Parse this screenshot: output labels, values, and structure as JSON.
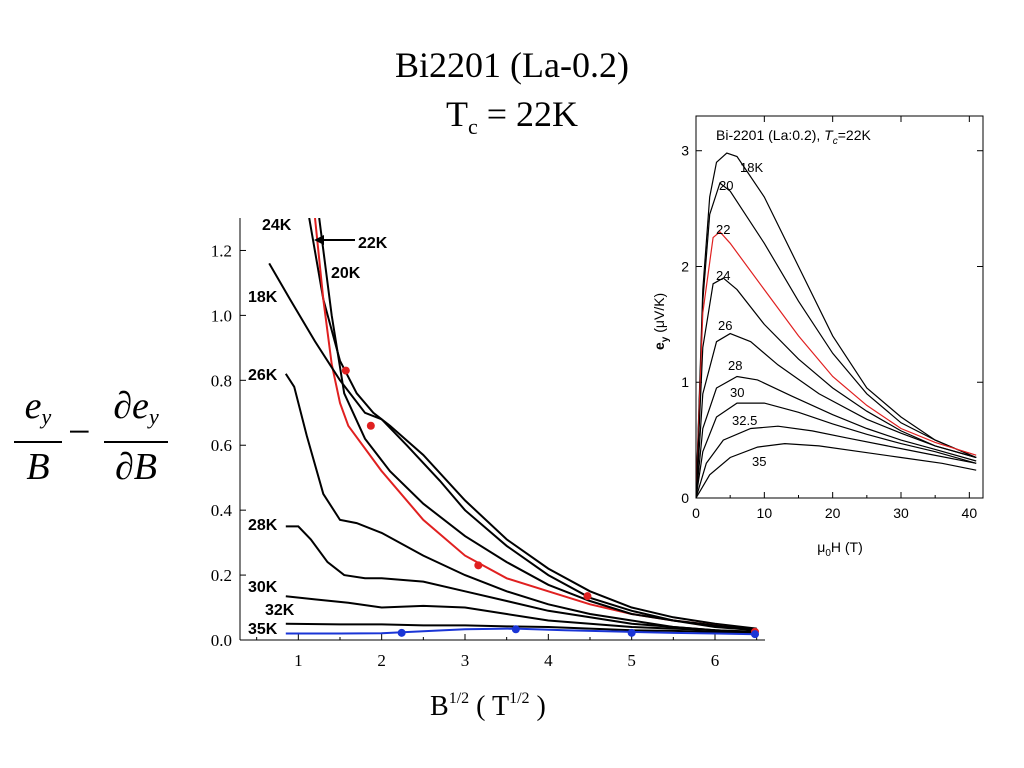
{
  "title_line1": "Bi2201 (La-0.2)",
  "title_line2_prefix": "T",
  "title_line2_sub": "c",
  "title_line2_suffix": " = 22K",
  "ylabel_formula": {
    "num1": "e",
    "num1_sub": "y",
    "den1": "B",
    "num2": "∂e",
    "num2_sub": "y",
    "den2": "∂B",
    "operator": "−"
  },
  "main_xlabel": {
    "base": "B",
    "sup": "1/2",
    "unit_pre": " ( T",
    "unit_sup": "1/2",
    "unit_post": " )"
  },
  "colors": {
    "red": "#e02020",
    "blue": "#1a35d6",
    "black": "#000000"
  },
  "chart_data": [
    {
      "type": "line",
      "xlim": [
        0.3,
        6.6
      ],
      "ylim": [
        0,
        1.3
      ],
      "x_ticks": [
        "1",
        "2",
        "3",
        "4",
        "5",
        "6"
      ],
      "y_ticks": [
        "0.0",
        "0.2",
        "0.4",
        "0.6",
        "0.8",
        "1.0",
        "1.2"
      ],
      "series": [
        {
          "name": "24K",
          "color": "#000000",
          "points": [
            [
              1.13,
              1.3
            ],
            [
              1.3,
              1.05
            ],
            [
              1.5,
              0.86
            ],
            [
              1.7,
              0.76
            ],
            [
              1.9,
              0.7
            ],
            [
              2.1,
              0.66
            ],
            [
              2.5,
              0.57
            ],
            [
              3.0,
              0.43
            ],
            [
              3.5,
              0.31
            ],
            [
              4.0,
              0.22
            ],
            [
              4.5,
              0.15
            ],
            [
              5.0,
              0.1
            ],
            [
              5.5,
              0.07
            ],
            [
              6.0,
              0.05
            ],
            [
              6.5,
              0.035
            ]
          ]
        },
        {
          "name": "22K",
          "color": "#e02020",
          "points": [
            [
              1.2,
              1.3
            ],
            [
              1.3,
              1.05
            ],
            [
              1.4,
              0.85
            ],
            [
              1.5,
              0.73
            ],
            [
              1.6,
              0.66
            ],
            [
              2.0,
              0.52
            ],
            [
              2.5,
              0.37
            ],
            [
              3.0,
              0.26
            ],
            [
              3.5,
              0.19
            ],
            [
              4.0,
              0.15
            ],
            [
              4.5,
              0.11
            ],
            [
              5.0,
              0.08
            ],
            [
              5.5,
              0.06
            ],
            [
              6.0,
              0.045
            ],
            [
              6.5,
              0.03
            ]
          ]
        },
        {
          "name": "20K",
          "color": "#000000",
          "points": [
            [
              1.25,
              1.3
            ],
            [
              1.4,
              1.0
            ],
            [
              1.55,
              0.76
            ],
            [
              1.8,
              0.62
            ],
            [
              2.1,
              0.52
            ],
            [
              2.5,
              0.42
            ],
            [
              3.0,
              0.32
            ],
            [
              3.5,
              0.24
            ],
            [
              4.0,
              0.17
            ],
            [
              4.5,
              0.12
            ],
            [
              5.0,
              0.08
            ],
            [
              5.5,
              0.06
            ],
            [
              6.0,
              0.045
            ],
            [
              6.5,
              0.032
            ]
          ]
        },
        {
          "name": "18K",
          "color": "#000000",
          "points": [
            [
              0.65,
              1.16
            ],
            [
              0.9,
              1.05
            ],
            [
              1.2,
              0.92
            ],
            [
              1.5,
              0.8
            ],
            [
              1.8,
              0.7
            ],
            [
              2.0,
              0.68
            ],
            [
              2.3,
              0.6
            ],
            [
              2.7,
              0.49
            ],
            [
              3.0,
              0.4
            ],
            [
              3.5,
              0.29
            ],
            [
              4.0,
              0.2
            ],
            [
              4.5,
              0.13
            ],
            [
              5.0,
              0.09
            ],
            [
              5.5,
              0.06
            ],
            [
              6.0,
              0.04
            ],
            [
              6.5,
              0.03
            ]
          ]
        },
        {
          "name": "26K",
          "color": "#000000",
          "points": [
            [
              0.85,
              0.82
            ],
            [
              0.95,
              0.78
            ],
            [
              1.1,
              0.63
            ],
            [
              1.3,
              0.45
            ],
            [
              1.5,
              0.37
            ],
            [
              1.7,
              0.36
            ],
            [
              2.0,
              0.33
            ],
            [
              2.5,
              0.26
            ],
            [
              3.0,
              0.2
            ],
            [
              3.5,
              0.15
            ],
            [
              4.0,
              0.11
            ],
            [
              4.5,
              0.08
            ],
            [
              5.0,
              0.06
            ],
            [
              5.5,
              0.04
            ],
            [
              6.0,
              0.03
            ],
            [
              6.5,
              0.025
            ]
          ]
        },
        {
          "name": "28K",
          "color": "#000000",
          "points": [
            [
              0.85,
              0.35
            ],
            [
              1.0,
              0.35
            ],
            [
              1.15,
              0.31
            ],
            [
              1.35,
              0.24
            ],
            [
              1.55,
              0.2
            ],
            [
              1.8,
              0.19
            ],
            [
              2.0,
              0.19
            ],
            [
              2.5,
              0.18
            ],
            [
              3.0,
              0.15
            ],
            [
              3.5,
              0.12
            ],
            [
              4.0,
              0.09
            ],
            [
              4.5,
              0.07
            ],
            [
              5.0,
              0.05
            ],
            [
              5.5,
              0.04
            ],
            [
              6.0,
              0.03
            ],
            [
              6.5,
              0.025
            ]
          ]
        },
        {
          "name": "30K",
          "color": "#000000",
          "points": [
            [
              0.85,
              0.135
            ],
            [
              1.2,
              0.125
            ],
            [
              1.6,
              0.115
            ],
            [
              2.0,
              0.1
            ],
            [
              2.5,
              0.105
            ],
            [
              3.0,
              0.1
            ],
            [
              3.5,
              0.08
            ],
            [
              4.0,
              0.06
            ],
            [
              4.5,
              0.05
            ],
            [
              5.0,
              0.04
            ],
            [
              5.5,
              0.035
            ],
            [
              6.0,
              0.03
            ],
            [
              6.5,
              0.022
            ]
          ]
        },
        {
          "name": "32K",
          "color": "#000000",
          "points": [
            [
              0.85,
              0.05
            ],
            [
              1.5,
              0.048
            ],
            [
              2.0,
              0.048
            ],
            [
              2.5,
              0.045
            ],
            [
              3.0,
              0.045
            ],
            [
              3.5,
              0.042
            ],
            [
              4.0,
              0.04
            ],
            [
              4.5,
              0.035
            ],
            [
              5.0,
              0.03
            ],
            [
              5.5,
              0.028
            ],
            [
              6.0,
              0.025
            ],
            [
              6.5,
              0.02
            ]
          ]
        },
        {
          "name": "35K",
          "color": "#1a35d6",
          "points": [
            [
              0.85,
              0.02
            ],
            [
              1.5,
              0.02
            ],
            [
              2.0,
              0.021
            ],
            [
              2.5,
              0.027
            ],
            [
              3.0,
              0.033
            ],
            [
              3.6,
              0.035
            ],
            [
              4.2,
              0.03
            ],
            [
              5.0,
              0.025
            ],
            [
              5.5,
              0.022
            ],
            [
              6.0,
              0.02
            ],
            [
              6.5,
              0.018
            ]
          ]
        }
      ],
      "markers": [
        {
          "color": "#e02020",
          "points": [
            [
              1.57,
              0.83
            ],
            [
              1.87,
              0.66
            ],
            [
              3.16,
              0.23
            ],
            [
              4.47,
              0.135
            ],
            [
              6.48,
              0.025
            ]
          ]
        },
        {
          "color": "#1a35d6",
          "points": [
            [
              2.24,
              0.022
            ],
            [
              3.61,
              0.033
            ],
            [
              5.0,
              0.022
            ],
            [
              6.48,
              0.018
            ]
          ]
        }
      ],
      "labels": [
        "24K",
        "22K",
        "20K",
        "18K",
        "26K",
        "28K",
        "30K",
        "32K",
        "35K"
      ]
    },
    {
      "type": "line",
      "title_prefix": "Bi-2201 (La:0.2), ",
      "title_T": "T",
      "title_sub": "c",
      "title_suffix": "=22K",
      "xlim": [
        0,
        42
      ],
      "ylim": [
        0,
        3.3
      ],
      "x_ticks": [
        "0",
        "10",
        "20",
        "30",
        "40"
      ],
      "y_ticks": [
        "0",
        "1",
        "2",
        "3"
      ],
      "xlabel": {
        "pre": "μ",
        "sub": "0",
        "post": "H (T)"
      },
      "ylabel": {
        "pre": "e",
        "sub": "y",
        "post": " (μV/K)"
      },
      "series": [
        {
          "name": "18K",
          "color": "#000000",
          "points": [
            [
              0,
              0
            ],
            [
              1,
              1.8
            ],
            [
              2,
              2.6
            ],
            [
              3,
              2.9
            ],
            [
              4.5,
              2.98
            ],
            [
              6,
              2.95
            ],
            [
              10,
              2.6
            ],
            [
              15,
              2.0
            ],
            [
              20,
              1.4
            ],
            [
              25,
              0.95
            ],
            [
              30,
              0.7
            ],
            [
              35,
              0.5
            ],
            [
              41,
              0.35
            ]
          ]
        },
        {
          "name": "20",
          "color": "#000000",
          "points": [
            [
              0,
              0
            ],
            [
              1,
              1.7
            ],
            [
              2,
              2.45
            ],
            [
              3.5,
              2.72
            ],
            [
              5,
              2.65
            ],
            [
              10,
              2.2
            ],
            [
              15,
              1.7
            ],
            [
              20,
              1.25
            ],
            [
              25,
              0.9
            ],
            [
              30,
              0.65
            ],
            [
              35,
              0.5
            ],
            [
              41,
              0.35
            ]
          ]
        },
        {
          "name": "22",
          "color": "#e02020",
          "points": [
            [
              0,
              0
            ],
            [
              1,
              1.6
            ],
            [
              2.5,
              2.25
            ],
            [
              3.5,
              2.3
            ],
            [
              5,
              2.2
            ],
            [
              10,
              1.8
            ],
            [
              15,
              1.4
            ],
            [
              20,
              1.05
            ],
            [
              25,
              0.8
            ],
            [
              30,
              0.6
            ],
            [
              35,
              0.48
            ],
            [
              41,
              0.37
            ]
          ]
        },
        {
          "name": "24",
          "color": "#000000",
          "points": [
            [
              0,
              0
            ],
            [
              1,
              1.3
            ],
            [
              2.5,
              1.85
            ],
            [
              4,
              1.9
            ],
            [
              6,
              1.8
            ],
            [
              10,
              1.5
            ],
            [
              15,
              1.2
            ],
            [
              20,
              0.95
            ],
            [
              25,
              0.75
            ],
            [
              30,
              0.58
            ],
            [
              35,
              0.45
            ],
            [
              41,
              0.35
            ]
          ]
        },
        {
          "name": "26",
          "color": "#000000",
          "points": [
            [
              0,
              0
            ],
            [
              1,
              0.9
            ],
            [
              3,
              1.35
            ],
            [
              5,
              1.42
            ],
            [
              8,
              1.35
            ],
            [
              12,
              1.15
            ],
            [
              18,
              0.9
            ],
            [
              25,
              0.68
            ],
            [
              30,
              0.56
            ],
            [
              35,
              0.45
            ],
            [
              41,
              0.35
            ]
          ]
        },
        {
          "name": "28",
          "color": "#000000",
          "points": [
            [
              0,
              0
            ],
            [
              1,
              0.6
            ],
            [
              3,
              0.95
            ],
            [
              6,
              1.05
            ],
            [
              9,
              1.02
            ],
            [
              14,
              0.88
            ],
            [
              20,
              0.72
            ],
            [
              25,
              0.6
            ],
            [
              30,
              0.5
            ],
            [
              35,
              0.42
            ],
            [
              41,
              0.32
            ]
          ]
        },
        {
          "name": "30",
          "color": "#000000",
          "points": [
            [
              0,
              0
            ],
            [
              1,
              0.4
            ],
            [
              3,
              0.7
            ],
            [
              6,
              0.82
            ],
            [
              10,
              0.82
            ],
            [
              15,
              0.74
            ],
            [
              20,
              0.64
            ],
            [
              25,
              0.55
            ],
            [
              30,
              0.47
            ],
            [
              35,
              0.4
            ],
            [
              41,
              0.3
            ]
          ]
        },
        {
          "name": "32.5",
          "color": "#000000",
          "points": [
            [
              0,
              0
            ],
            [
              1.5,
              0.3
            ],
            [
              4,
              0.5
            ],
            [
              8,
              0.6
            ],
            [
              12,
              0.62
            ],
            [
              17,
              0.58
            ],
            [
              22,
              0.52
            ],
            [
              28,
              0.45
            ],
            [
              34,
              0.38
            ],
            [
              41,
              0.3
            ]
          ]
        },
        {
          "name": "35",
          "color": "#000000",
          "points": [
            [
              0,
              0
            ],
            [
              2,
              0.2
            ],
            [
              5,
              0.35
            ],
            [
              9,
              0.44
            ],
            [
              13,
              0.47
            ],
            [
              18,
              0.45
            ],
            [
              24,
              0.4
            ],
            [
              30,
              0.35
            ],
            [
              36,
              0.3
            ],
            [
              41,
              0.24
            ]
          ]
        }
      ]
    }
  ]
}
